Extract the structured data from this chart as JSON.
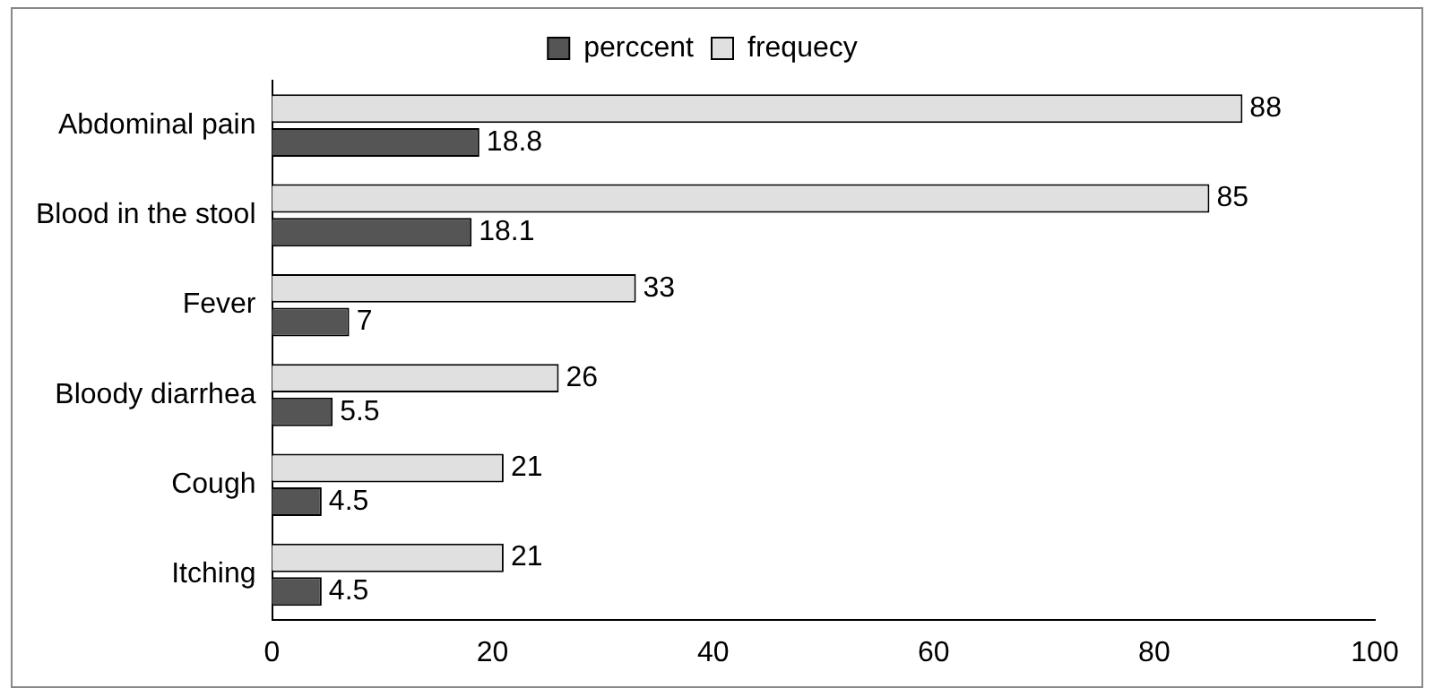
{
  "chart_data": {
    "type": "bar",
    "orientation": "horizontal",
    "categories": [
      "Abdominal pain",
      "Blood in the stool",
      "Fever",
      "Bloody diarrhea",
      "Cough",
      "Itching"
    ],
    "series": [
      {
        "name": "perccent",
        "color": "#555555",
        "values": [
          18.8,
          18.1,
          7,
          5.5,
          4.5,
          4.5
        ]
      },
      {
        "name": "frequecy",
        "color": "#e0e0e0",
        "values": [
          88,
          85,
          33,
          26,
          21,
          21
        ]
      }
    ],
    "xlim": [
      0,
      100
    ],
    "xticks": [
      0,
      20,
      40,
      60,
      80,
      100
    ],
    "grid": false,
    "legend": "top",
    "data_labels": true
  }
}
